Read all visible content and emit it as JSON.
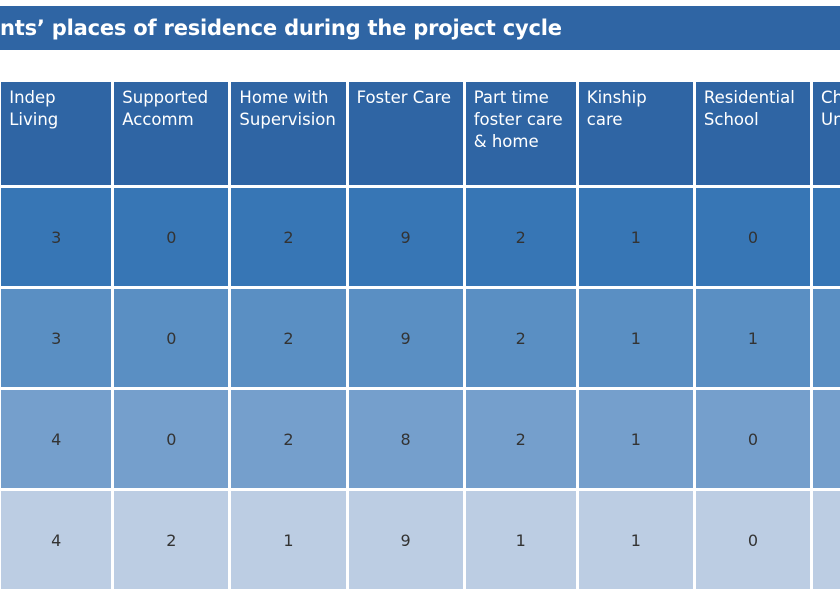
{
  "title": "nts’ places of residence during the project cycle",
  "columns": [
    "",
    "Indep Living",
    "Supported\nAccomm",
    "Home with\nSupervision",
    "Foster Care",
    "Part time\nfoster care\n& home",
    "Kinship\ncare",
    "Residential\nSchool",
    "Children’s\nUnit"
  ],
  "rows": [
    {
      "cells": [
        "3",
        "0",
        "2",
        "9",
        "2",
        "1",
        "0",
        ""
      ]
    },
    {
      "cells": [
        "3",
        "0",
        "2",
        "9",
        "2",
        "1",
        "1",
        ""
      ]
    },
    {
      "cells": [
        "4",
        "0",
        "2",
        "8",
        "2",
        "1",
        "0",
        ""
      ]
    },
    {
      "cells": [
        "4",
        "2",
        "1",
        "9",
        "1",
        "1",
        "0",
        ""
      ]
    }
  ],
  "colors": {
    "header": "#2f65a4",
    "row_1": "#3776b5",
    "row_2": "#5a8fc3",
    "row_3": "#759fcc",
    "row_4": "#bccde3"
  }
}
